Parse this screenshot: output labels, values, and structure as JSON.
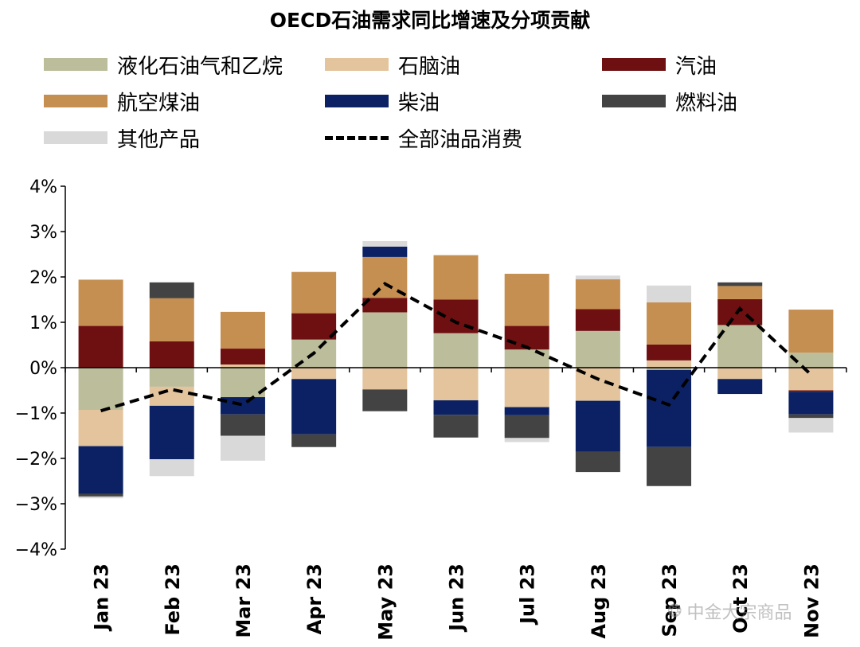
{
  "chart_data": {
    "type": "bar",
    "stacked": true,
    "title": "OECD石油需求同比增速及分项贡献",
    "categories": [
      "Jan 23",
      "Feb 23",
      "Mar 23",
      "Apr 23",
      "May 23",
      "Jun 23",
      "Jul 23",
      "Aug 23",
      "Sep 23",
      "Oct 23",
      "Nov 23"
    ],
    "y_ticks": [
      "4%",
      "3%",
      "2%",
      "1%",
      "0%",
      "−1%",
      "−2%",
      "−3%",
      "−4%"
    ],
    "ylim": [
      -4,
      4
    ],
    "series": [
      {
        "name": "液化石油气和乙烷",
        "color": "#bcbd9b",
        "values": [
          -0.93,
          -0.42,
          -0.65,
          0.62,
          1.22,
          0.76,
          0.4,
          0.81,
          -0.05,
          0.94,
          0.33
        ]
      },
      {
        "name": "石脑油",
        "color": "#e3c49c",
        "values": [
          -0.8,
          -0.42,
          0.07,
          -0.25,
          -0.48,
          -0.72,
          -0.87,
          -0.73,
          0.16,
          -0.25,
          -0.5
        ]
      },
      {
        "name": "汽油",
        "color": "#6e0f11",
        "values": [
          0.92,
          0.58,
          0.35,
          0.58,
          0.32,
          0.74,
          0.52,
          0.48,
          0.35,
          0.57,
          -0.03
        ]
      },
      {
        "name": "航空煤油",
        "color": "#c58f52",
        "values": [
          1.02,
          0.95,
          0.81,
          0.91,
          0.9,
          0.98,
          1.15,
          0.66,
          0.93,
          0.29,
          0.95
        ]
      },
      {
        "name": "柴油",
        "color": "#0b2163",
        "values": [
          -1.05,
          -1.18,
          -0.38,
          -1.22,
          0.23,
          -0.32,
          -0.18,
          -1.12,
          -1.7,
          -0.33,
          -0.5
        ]
      },
      {
        "name": "燃料油",
        "color": "#434343",
        "values": [
          -0.06,
          0.35,
          -0.47,
          -0.28,
          -0.48,
          -0.5,
          -0.5,
          -0.45,
          -0.86,
          0.08,
          -0.08
        ]
      },
      {
        "name": "其他产品",
        "color": "#d9d9d9",
        "values": [
          -0.04,
          -0.37,
          -0.55,
          0.0,
          0.12,
          0.0,
          -0.09,
          0.08,
          0.37,
          0.0,
          -0.32
        ]
      }
    ],
    "line": {
      "name": "全部油品消费",
      "color": "#000000",
      "style": "dashed",
      "values": [
        -0.95,
        -0.48,
        -0.82,
        0.32,
        1.85,
        1.0,
        0.45,
        -0.25,
        -0.82,
        1.3,
        -0.15
      ]
    },
    "legend_position": "top",
    "grid": false
  },
  "watermark": {
    "text": "中金大宗商品",
    "icon": "wechat-icon"
  }
}
